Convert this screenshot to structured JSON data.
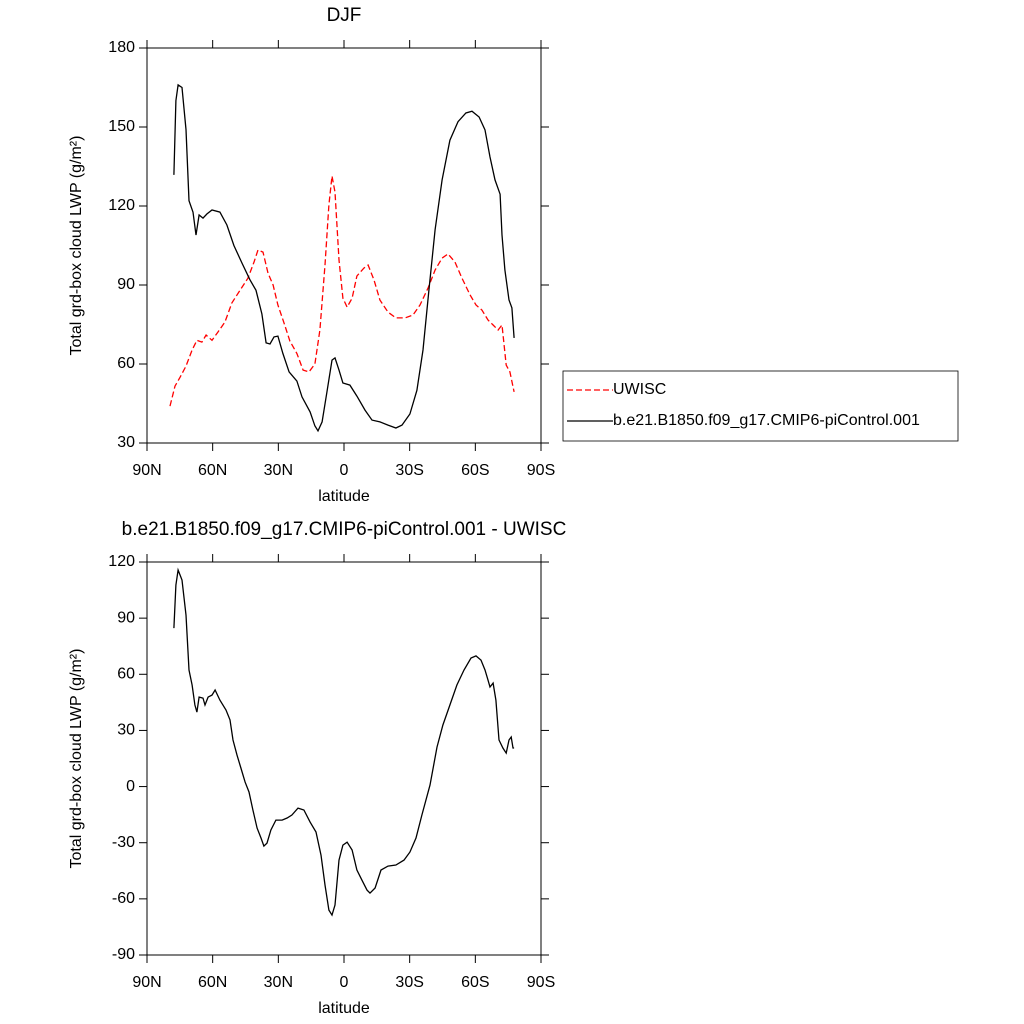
{
  "chart_data": [
    {
      "type": "line",
      "title": "DJF",
      "xlabel": "latitude",
      "ylabel": "Total grd-box cloud LWP (g/m²)",
      "xlim": [
        90,
        -90
      ],
      "xticks": [
        {
          "value": 90,
          "label": "90N"
        },
        {
          "value": 60,
          "label": "60N"
        },
        {
          "value": 30,
          "label": "30N"
        },
        0,
        {
          "value": -30,
          "label": "30S"
        },
        {
          "value": -60,
          "label": "60S"
        },
        {
          "value": -90,
          "label": "90S"
        }
      ],
      "ylim": [
        30,
        180
      ],
      "yticks": [
        30,
        60,
        90,
        120,
        150,
        180
      ],
      "legend": "right",
      "series": [
        {
          "name": "UWISC",
          "color": "#ff0000",
          "line_style": "dashed",
          "x": [
            79.5,
            77.2,
            74.9,
            72.2,
            69.4,
            67.2,
            64.9,
            63,
            60.3,
            57.6,
            54.4,
            51.2,
            47.5,
            43.9,
            41.1,
            39.3,
            37,
            34.7,
            32.4,
            30.2,
            27.4,
            24.7,
            21.5,
            18.7,
            16,
            13.3,
            11,
            8.7,
            6.9,
            5.5,
            4.1,
            2.3,
            0.5,
            -1.4,
            -3.7,
            -5.9,
            -9.1,
            -11,
            -13.7,
            -16.4,
            -20.1,
            -23.7,
            -27.9,
            -31.5,
            -34.7,
            -38.4,
            -41.6,
            -44.8,
            -47.5,
            -50.7,
            -53.9,
            -57.6,
            -60.3,
            -63,
            -65.8,
            -68.1,
            -70.4,
            -72.2,
            -74.1,
            -75.8,
            -77.7
          ],
          "values": [
            44,
            51.6,
            55,
            59.2,
            65.3,
            69,
            68.3,
            71,
            69,
            72.1,
            75.9,
            83.2,
            88,
            92.6,
            98.7,
            103.3,
            102.5,
            94.5,
            90,
            82.4,
            75.6,
            68.7,
            64,
            57.7,
            57,
            60,
            72.9,
            97.6,
            120.4,
            131.4,
            125.3,
            99.5,
            85,
            81.6,
            85,
            93.4,
            96.4,
            97.6,
            91.9,
            84.3,
            79.7,
            77.5,
            77.5,
            78.6,
            82.4,
            88.9,
            95.7,
            100.2,
            101.8,
            98.7,
            92.6,
            86.2,
            82.4,
            80.5,
            76.7,
            74.8,
            72.9,
            74.8,
            59.6,
            57,
            49.4
          ]
        },
        {
          "name": "b.e21.B1850.f09_g17.CMIP6-piControl.001",
          "color": "#000000",
          "line_style": "solid",
          "x": [
            77.7,
            76.8,
            75.8,
            74,
            72.2,
            70.8,
            69,
            67.6,
            66.2,
            64.4,
            62.6,
            60.3,
            56.7,
            53.5,
            50.3,
            46.6,
            43,
            40.2,
            37.5,
            35.6,
            33.8,
            32,
            30.2,
            27.9,
            25.1,
            21.5,
            19.2,
            15.5,
            13.3,
            11.9,
            10,
            7.8,
            5.5,
            4.1,
            2.3,
            0.5,
            -2.7,
            -5.9,
            -9.6,
            -12.8,
            -16.4,
            -20.1,
            -23.7,
            -26.5,
            -30.1,
            -33.3,
            -36.1,
            -38.8,
            -41.6,
            -44.8,
            -48.4,
            -52.1,
            -55.7,
            -58.5,
            -61.7,
            -64.4,
            -66.7,
            -69,
            -71.3,
            -72.2,
            -73.5,
            -75.4,
            -76.7,
            -77.7
          ],
          "values": [
            131.8,
            160,
            166,
            165,
            149,
            122,
            117.7,
            109,
            116.6,
            115.4,
            117,
            118.5,
            117.7,
            112.8,
            105,
            98.3,
            92,
            88,
            79,
            68,
            67.6,
            70.3,
            70.6,
            64,
            57,
            53.5,
            47.5,
            41.8,
            36.5,
            34.6,
            38,
            49.3,
            61.5,
            62.3,
            57.7,
            52.8,
            52,
            47.8,
            42.5,
            38.7,
            38,
            36.8,
            35.7,
            36.8,
            41,
            50,
            65.3,
            88,
            111,
            129.9,
            145,
            152,
            155.3,
            156,
            153.8,
            148.9,
            138.6,
            129.9,
            124.5,
            109,
            95.7,
            84.3,
            81.3,
            69.9
          ]
        }
      ]
    },
    {
      "type": "line",
      "title": "b.e21.B1850.f09_g17.CMIP6-piControl.001 - UWISC",
      "xlabel": "latitude",
      "ylabel": "Total grd-box cloud LWP (g/m²)",
      "xlim": [
        90,
        -90
      ],
      "xticks": [
        {
          "value": 90,
          "label": "90N"
        },
        {
          "value": 60,
          "label": "60N"
        },
        {
          "value": 30,
          "label": "30N"
        },
        0,
        {
          "value": -30,
          "label": "30S"
        },
        {
          "value": -60,
          "label": "60S"
        },
        {
          "value": -90,
          "label": "90S"
        }
      ],
      "ylim": [
        -90,
        120
      ],
      "yticks": [
        -90,
        -60,
        -30,
        0,
        30,
        60,
        90,
        120
      ],
      "series": [
        {
          "color": "#000000",
          "line_style": "solid",
          "x": [
            77.7,
            76.8,
            75.8,
            74,
            72.2,
            70.8,
            69.4,
            68.1,
            67.2,
            66.2,
            64.4,
            63.5,
            62.1,
            60.3,
            58.9,
            56.7,
            53.9,
            52.1,
            50.7,
            48.9,
            47.1,
            45.2,
            43.4,
            41.6,
            39.7,
            37.9,
            36.6,
            35.2,
            33.4,
            31.1,
            28.3,
            26,
            23.8,
            21,
            18.3,
            15.5,
            12.8,
            10.5,
            8.7,
            6.9,
            5.5,
            4.1,
            2.3,
            0.5,
            -1.4,
            -3.7,
            -5.9,
            -8.2,
            -10.5,
            -11.9,
            -14.2,
            -16.9,
            -20.1,
            -23.7,
            -27.4,
            -30.1,
            -32.9,
            -35.6,
            -39.3,
            -42.5,
            -45.2,
            -48.4,
            -51.6,
            -54.8,
            -58,
            -60.3,
            -62.6,
            -64.4,
            -65.8,
            -66.7,
            -68.1,
            -69.4,
            -70.8,
            -72.6,
            -74.1,
            -75.4,
            -76.4,
            -77.2,
            -77.7
          ],
          "values": [
            84.7,
            107.7,
            115.7,
            110.4,
            91.7,
            62.3,
            54.3,
            43.6,
            39.8,
            47.8,
            47.3,
            43.6,
            47.8,
            48.9,
            51.6,
            46.2,
            40.9,
            35.6,
            24.9,
            16.8,
            9.9,
            2.4,
            -2.9,
            -12.5,
            -22.2,
            -27.5,
            -31.8,
            -30.2,
            -23.2,
            -17.9,
            -17.9,
            -16.8,
            -15.2,
            -11.5,
            -12.5,
            -19,
            -24.3,
            -36.6,
            -52.6,
            -66,
            -68.7,
            -63.3,
            -39.3,
            -31.3,
            -29.7,
            -33.9,
            -44.6,
            -50,
            -55.3,
            -56.9,
            -54.2,
            -44.6,
            -42.5,
            -41.9,
            -39.3,
            -35,
            -27.5,
            -15.2,
            0.8,
            21.1,
            32.9,
            43.6,
            54.3,
            62.3,
            68.7,
            69.8,
            67.6,
            62.3,
            56.9,
            53.2,
            55.3,
            46.2,
            24.9,
            20.6,
            17.9,
            24.9,
            26.5,
            20.6,
            20.6
          ]
        }
      ]
    }
  ]
}
